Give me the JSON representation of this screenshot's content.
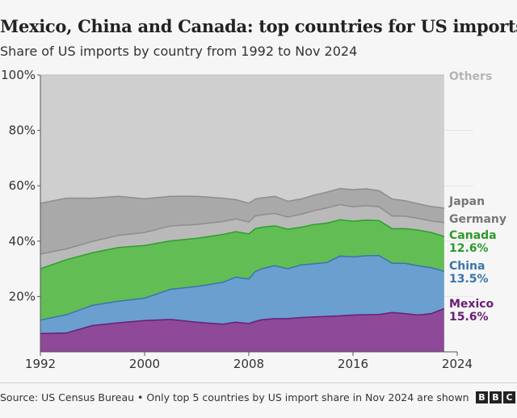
{
  "title": "Mexico, China and Canada: top countries for US imports",
  "subtitle": "Share of US imports by country from 1992 to Nov 2024",
  "source": "Source: US Census Bureau • Only top 5 countries by US import share in Nov 2024 are shown",
  "logo": "BBC",
  "chart_data": {
    "type": "area",
    "stacked": true,
    "x": [
      1992,
      1994,
      1996,
      1998,
      2000,
      2002,
      2004,
      2006,
      2007,
      2008,
      2008.5,
      2009,
      2010,
      2011,
      2012,
      2013,
      2014,
      2015,
      2016,
      2017,
      2018,
      2019,
      2020,
      2021,
      2022,
      2023
    ],
    "xticks": [
      "1992",
      "2000",
      "2008",
      "2016",
      "2024"
    ],
    "yticks": [
      "20%",
      "40%",
      "60%",
      "80%",
      "100%"
    ],
    "ylim": [
      0,
      100
    ],
    "xlim": [
      1992,
      2024
    ],
    "series": [
      {
        "name": "Mexico",
        "label_value": "15.6%",
        "color": "#8e4a98",
        "line": "#6b1d75",
        "label_color": "#6b1d75",
        "values": [
          6.6,
          6.8,
          9.5,
          10.5,
          11.3,
          11.7,
          10.7,
          10.0,
          10.7,
          10.2,
          11.0,
          11.6,
          12.0,
          12.0,
          12.4,
          12.6,
          12.8,
          13.0,
          13.3,
          13.4,
          13.5,
          14.2,
          13.8,
          13.3,
          13.8,
          15.6
        ]
      },
      {
        "name": "China",
        "label_value": "13.5%",
        "color": "#6a9fcf",
        "line": "#3a74ad",
        "label_color": "#3a74ad",
        "values": [
          4.9,
          6.6,
          7.3,
          7.8,
          8.1,
          10.9,
          12.9,
          15.1,
          16.3,
          16.1,
          18.0,
          18.4,
          19.1,
          18.0,
          19.0,
          19.2,
          19.5,
          21.6,
          21.0,
          21.3,
          21.3,
          17.8,
          18.2,
          17.8,
          16.6,
          13.5
        ]
      },
      {
        "name": "Canada",
        "label_value": "12.6%",
        "color": "#62bd55",
        "line": "#2aa02a",
        "label_color": "#2b9a2b",
        "values": [
          18.5,
          19.9,
          19.0,
          19.4,
          19.0,
          17.5,
          17.4,
          17.3,
          16.4,
          16.3,
          15.5,
          15.0,
          14.4,
          14.3,
          13.6,
          14.2,
          14.2,
          13.1,
          12.9,
          12.9,
          12.6,
          12.5,
          12.5,
          12.9,
          12.7,
          12.6
        ]
      },
      {
        "name": "Germany",
        "color": "#b9b9b9",
        "line": "#8d8d8d",
        "label_color": "#777777",
        "values": [
          5.3,
          3.9,
          4.1,
          4.4,
          4.7,
          5.4,
          5.0,
          4.7,
          4.6,
          4.3,
          4.6,
          4.5,
          4.5,
          4.4,
          4.7,
          5.0,
          5.5,
          5.5,
          5.2,
          5.2,
          5.0,
          4.6,
          4.5,
          4.2,
          4.2,
          5.0
        ]
      },
      {
        "name": "Japan",
        "color": "#a9a9a9",
        "line": "#8d8d8d",
        "label_color": "#777777",
        "values": [
          18.4,
          18.3,
          15.6,
          14.1,
          12.2,
          10.7,
          10.2,
          8.4,
          7.0,
          6.8,
          6.1,
          6.1,
          6.2,
          5.7,
          5.5,
          5.6,
          5.7,
          5.8,
          6.2,
          6.1,
          5.8,
          6.1,
          5.6,
          5.3,
          5.2,
          5.2
        ]
      },
      {
        "name": "Others",
        "color": "#cfcfcf",
        "line": "#cfcfcf",
        "label_color": "#b5b5b5",
        "fill_to": 100
      }
    ]
  }
}
